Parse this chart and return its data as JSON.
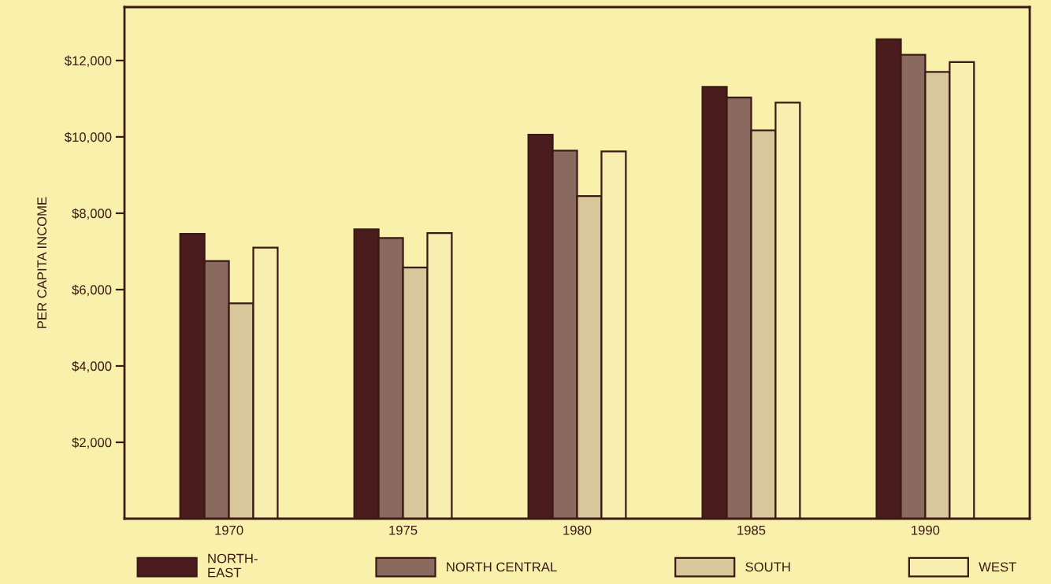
{
  "chart_data": {
    "type": "bar",
    "ylabel": "PER CAPITA INCOME",
    "categories": [
      "1970",
      "1975",
      "1980",
      "1985",
      "1990"
    ],
    "series": [
      {
        "name": "NORTH-\nEAST",
        "color": "#4a1c1e",
        "values": [
          7460,
          7580,
          10060,
          11310,
          12560
        ]
      },
      {
        "name": "NORTH CENTRAL",
        "color": "#8a6a5e",
        "values": [
          6750,
          7350,
          9640,
          11030,
          12150
        ]
      },
      {
        "name": "SOUTH",
        "color": "#d8c79a",
        "values": [
          5640,
          6580,
          8450,
          10170,
          11700
        ]
      },
      {
        "name": "WEST",
        "color": "#f8eeb0",
        "values": [
          7100,
          7480,
          9620,
          10900,
          11960
        ]
      }
    ],
    "ylim": [
      0,
      13400
    ],
    "yticks": [
      {
        "value": 2000,
        "label": "$2,000"
      },
      {
        "value": 4000,
        "label": "$4,000"
      },
      {
        "value": 6000,
        "label": "$6,000"
      },
      {
        "value": 8000,
        "label": "$8,000"
      },
      {
        "value": 10000,
        "label": "$10,000"
      },
      {
        "value": 12000,
        "label": "$12,000"
      }
    ],
    "grid": false,
    "legend": "bottom"
  }
}
